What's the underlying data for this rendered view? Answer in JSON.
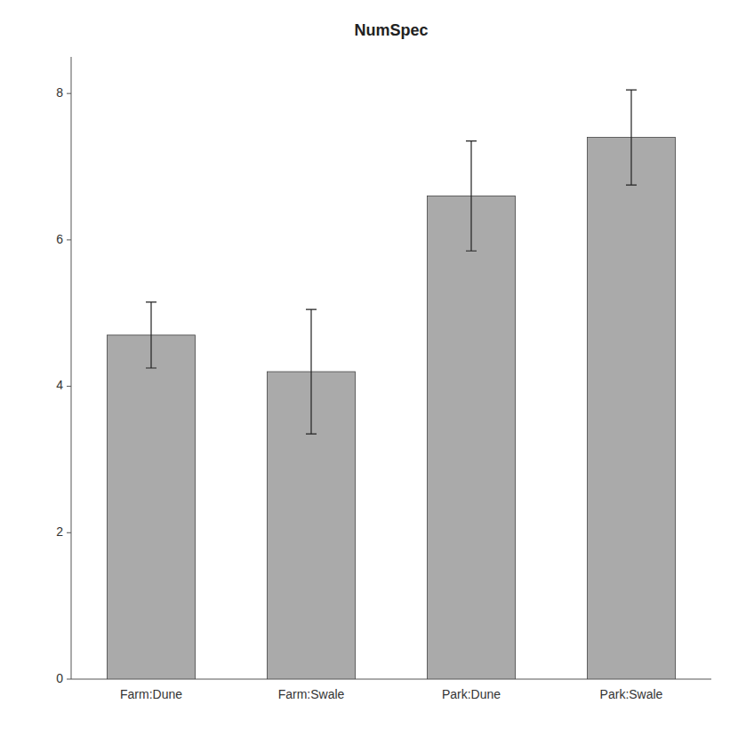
{
  "chart_data": {
    "type": "bar",
    "title": "NumSpec",
    "categories": [
      "Farm:Dune",
      "Farm:Swale",
      "Park:Dune",
      "Park:Swale"
    ],
    "values": [
      4.7,
      4.2,
      6.6,
      7.4
    ],
    "error_upper": [
      0.45,
      0.85,
      0.75,
      0.65
    ],
    "error_lower": [
      0.45,
      0.85,
      0.75,
      0.65
    ],
    "color": "#aaaaaa",
    "ylim": [
      0,
      8.5
    ],
    "yticks": [
      0,
      2,
      4,
      6,
      8
    ],
    "grid": false
  }
}
